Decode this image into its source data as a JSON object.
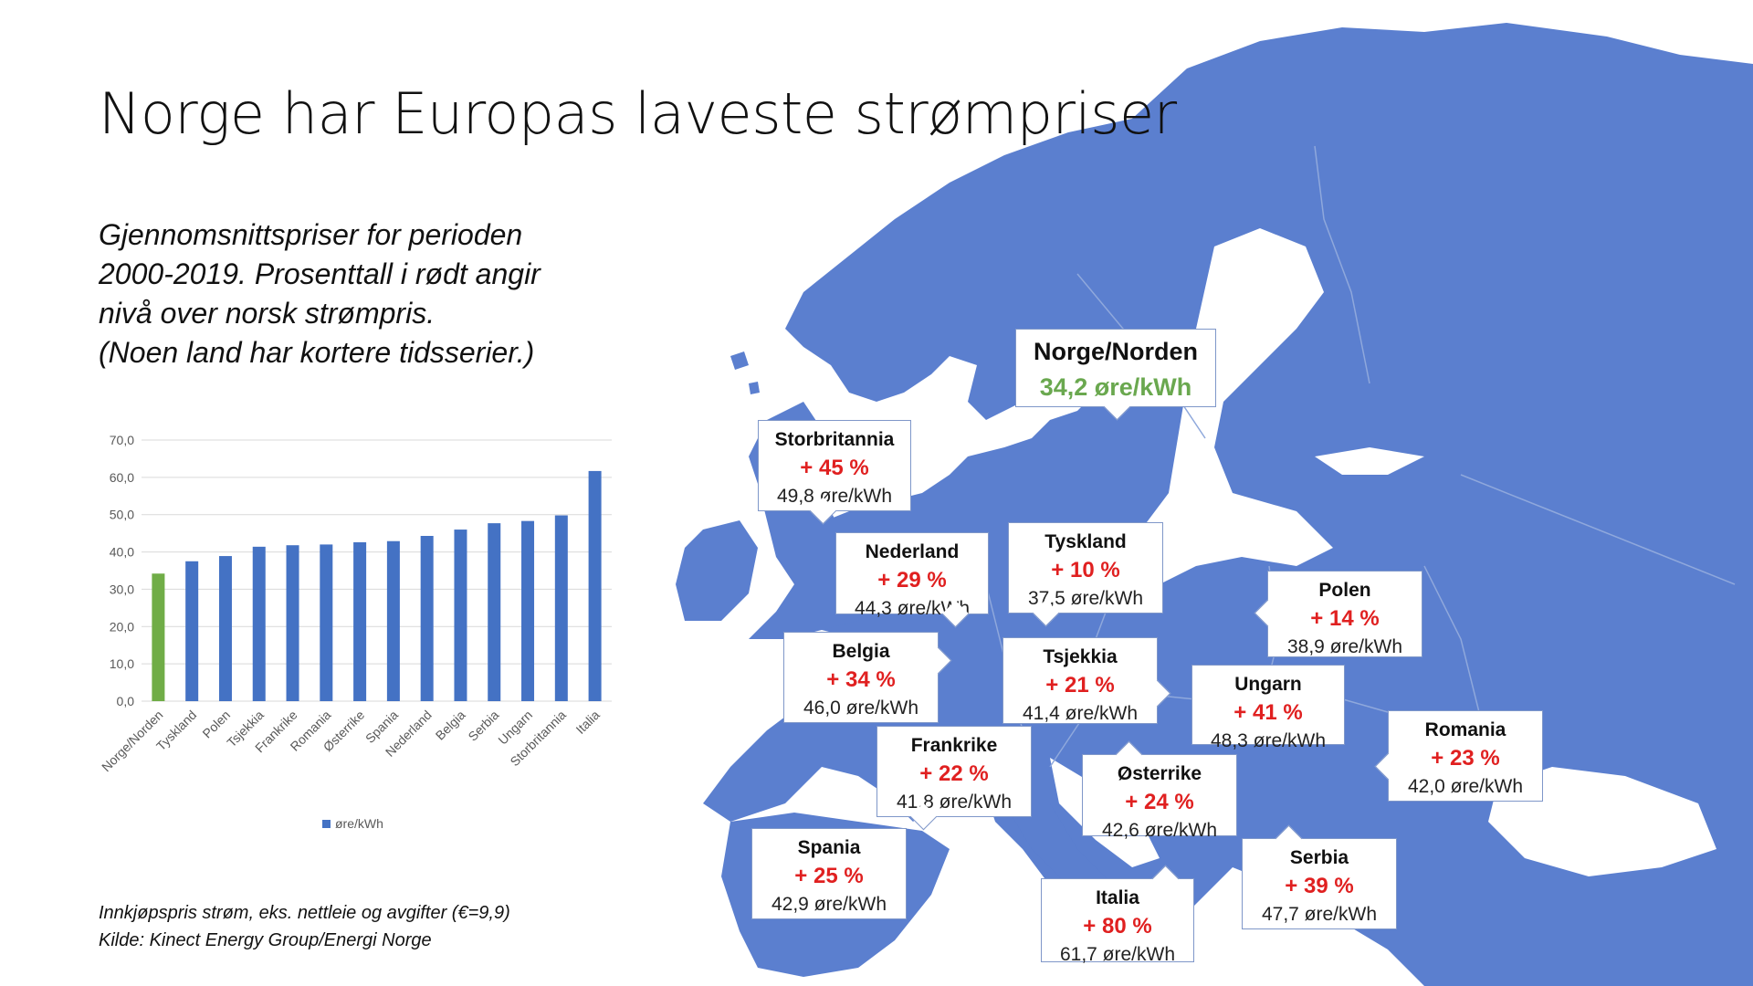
{
  "title": "Norge har Europas laveste strømpriser",
  "subtitle": [
    "Gjennomsnittspriser for perioden",
    "2000-2019. Prosenttall i rødt angir",
    "nivå over norsk strømpris.",
    "(Noen land har kortere tidsserier.)"
  ],
  "footnote": [
    "Innkjøpspris strøm, eks. nettleie og avgifter (€=9,9)",
    "Kilde: Kinect Energy Group/Energi Norge"
  ],
  "colors": {
    "bar": "#4472c4",
    "bar_highlight": "#70ad47",
    "map_land": "#5b7fcf",
    "map_border": "#8fa8dc",
    "percent_red": "#e02020",
    "norge_green": "#6aa84f"
  },
  "chart_data": {
    "type": "bar",
    "categories": [
      "Norge/Norden",
      "Tyskland",
      "Polen",
      "Tsjekkia",
      "Frankrike",
      "Romania",
      "Østerrike",
      "Spania",
      "Nederland",
      "Belgia",
      "Serbia",
      "Ungarn",
      "Storbritannia",
      "Italia"
    ],
    "series": [
      {
        "name": "øre/kWh",
        "values": [
          34.2,
          37.5,
          38.9,
          41.4,
          41.8,
          42.0,
          42.6,
          42.9,
          44.3,
          46.0,
          47.7,
          48.3,
          49.8,
          61.7
        ]
      }
    ],
    "highlight_index": 0,
    "ylim": [
      0,
      70
    ],
    "yticks": [
      "0,0",
      "10,0",
      "20,0",
      "30,0",
      "40,0",
      "50,0",
      "60,0",
      "70,0"
    ],
    "grid": true,
    "legend_position": "bottom"
  },
  "norge_callout": {
    "name": "Norge/Norden",
    "value": "34,2 øre/kWh"
  },
  "map_callouts": [
    {
      "id": "storbritannia",
      "name": "Storbritannia",
      "pct": "+ 45 %",
      "value": "49,8 øre/kWh"
    },
    {
      "id": "nederland",
      "name": "Nederland",
      "pct": "+ 29 %",
      "value": "44,3 øre/kWh"
    },
    {
      "id": "tyskland",
      "name": "Tyskland",
      "pct": "+ 10 %",
      "value": "37,5 øre/kWh"
    },
    {
      "id": "polen",
      "name": "Polen",
      "pct": "+ 14 %",
      "value": "38,9 øre/kWh"
    },
    {
      "id": "belgia",
      "name": "Belgia",
      "pct": "+ 34 %",
      "value": "46,0 øre/kWh"
    },
    {
      "id": "tsjekkia",
      "name": "Tsjekkia",
      "pct": "+ 21 %",
      "value": "41,4 øre/kWh"
    },
    {
      "id": "ungarn",
      "name": "Ungarn",
      "pct": "+ 41 %",
      "value": "48,3 øre/kWh"
    },
    {
      "id": "romania",
      "name": "Romania",
      "pct": "+ 23 %",
      "value": "42,0 øre/kWh"
    },
    {
      "id": "frankrike",
      "name": "Frankrike",
      "pct": "+ 22 %",
      "value": "41,8 øre/kWh"
    },
    {
      "id": "osterrike",
      "name": "Østerrike",
      "pct": "+ 24 %",
      "value": "42,6 øre/kWh"
    },
    {
      "id": "spania",
      "name": "Spania",
      "pct": "+ 25 %",
      "value": "42,9 øre/kWh"
    },
    {
      "id": "serbia",
      "name": "Serbia",
      "pct": "+ 39 %",
      "value": "47,7 øre/kWh"
    },
    {
      "id": "italia",
      "name": "Italia",
      "pct": "+ 80 %",
      "value": "61,7 øre/kWh"
    }
  ]
}
